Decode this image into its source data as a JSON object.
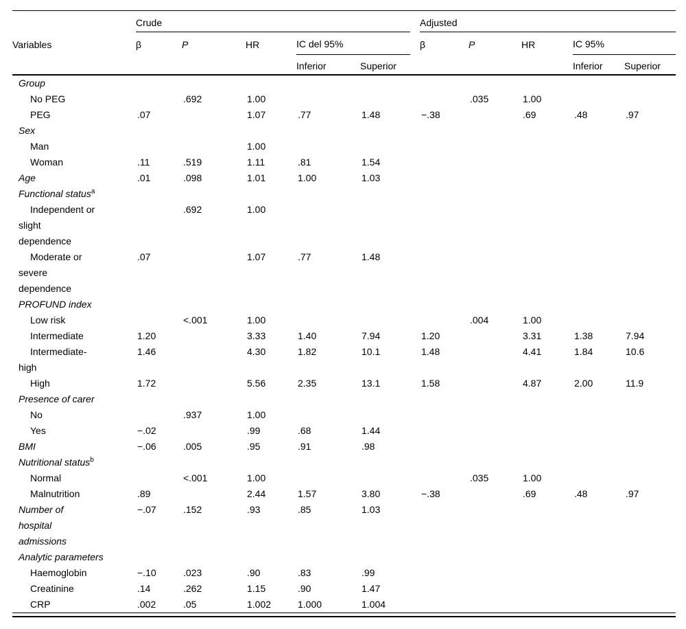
{
  "colors": {
    "background": "#ffffff",
    "text": "#000000",
    "rule": "#000000"
  },
  "table": {
    "header": {
      "variables": "Variables",
      "crude_group": "Crude",
      "adjusted_group": "Adjusted",
      "beta": "β",
      "p": "P",
      "hr": "HR",
      "ci_crude": "IC del 95%",
      "ci_adjusted": "IC 95%",
      "inferior": "Inferior",
      "superior": "Superior"
    },
    "rows": [
      {
        "label": "Group",
        "style": "section",
        "sup": "",
        "crude": [
          "",
          "",
          "",
          "",
          ""
        ],
        "adjusted": [
          "",
          "",
          "",
          "",
          ""
        ]
      },
      {
        "label": "No PEG",
        "style": "sub",
        "sup": "",
        "crude": [
          "",
          ".692",
          "1.00",
          "",
          ""
        ],
        "adjusted": [
          "",
          ".035",
          "1.00",
          "",
          ""
        ]
      },
      {
        "label": "PEG",
        "style": "sub",
        "sup": "",
        "crude": [
          ".07",
          "",
          "1.07",
          ".77",
          "1.48"
        ],
        "adjusted": [
          "−.38",
          "",
          ".69",
          ".48",
          ".97"
        ]
      },
      {
        "label": "Sex",
        "style": "section",
        "sup": "",
        "crude": [
          "",
          "",
          "",
          "",
          ""
        ],
        "adjusted": [
          "",
          "",
          "",
          "",
          ""
        ]
      },
      {
        "label": "Man",
        "style": "sub",
        "sup": "",
        "crude": [
          "",
          "",
          "1.00",
          "",
          ""
        ],
        "adjusted": [
          "",
          "",
          "",
          "",
          ""
        ]
      },
      {
        "label": "Woman",
        "style": "sub",
        "sup": "",
        "crude": [
          ".11",
          ".519",
          "1.11",
          ".81",
          "1.54"
        ],
        "adjusted": [
          "",
          "",
          "",
          "",
          ""
        ]
      },
      {
        "label": "Age",
        "style": "section",
        "sup": "",
        "crude": [
          ".01",
          ".098",
          "1.01",
          "1.00",
          "1.03"
        ],
        "adjusted": [
          "",
          "",
          "",
          "",
          ""
        ]
      },
      {
        "label": "Functional status",
        "style": "section",
        "sup": "a",
        "crude": [
          "",
          "",
          "",
          "",
          ""
        ],
        "adjusted": [
          "",
          "",
          "",
          "",
          ""
        ]
      },
      {
        "label": "Independent or\nslight\ndependence",
        "style": "sub",
        "sup": "",
        "crude": [
          "",
          ".692",
          "1.00",
          "",
          ""
        ],
        "adjusted": [
          "",
          "",
          "",
          "",
          ""
        ]
      },
      {
        "label": "Moderate or\nsevere\ndependence",
        "style": "sub",
        "sup": "",
        "crude": [
          ".07",
          "",
          "1.07",
          ".77",
          "1.48"
        ],
        "adjusted": [
          "",
          "",
          "",
          "",
          ""
        ]
      },
      {
        "label": "PROFUND index",
        "style": "section",
        "sup": "",
        "crude": [
          "",
          "",
          "",
          "",
          ""
        ],
        "adjusted": [
          "",
          "",
          "",
          "",
          ""
        ]
      },
      {
        "label": "Low risk",
        "style": "sub",
        "sup": "",
        "crude": [
          "",
          "<.001",
          "1.00",
          "",
          ""
        ],
        "adjusted": [
          "",
          ".004",
          "1.00",
          "",
          ""
        ]
      },
      {
        "label": "Intermediate",
        "style": "sub",
        "sup": "",
        "crude": [
          "1.20",
          "",
          "3.33",
          "1.40",
          "7.94"
        ],
        "adjusted": [
          "1.20",
          "",
          "3.31",
          "1.38",
          "7.94"
        ]
      },
      {
        "label": "Intermediate-\nhigh",
        "style": "sub",
        "sup": "",
        "crude": [
          "1.46",
          "",
          "4.30",
          "1.82",
          "10.1"
        ],
        "adjusted": [
          "1.48",
          "",
          "4.41",
          "1.84",
          "10.6"
        ]
      },
      {
        "label": "High",
        "style": "sub",
        "sup": "",
        "crude": [
          "1.72",
          "",
          "5.56",
          "2.35",
          "13.1"
        ],
        "adjusted": [
          "1.58",
          "",
          "4.87",
          "2.00",
          "11.9"
        ]
      },
      {
        "label": "Presence of carer",
        "style": "section",
        "sup": "",
        "crude": [
          "",
          "",
          "",
          "",
          ""
        ],
        "adjusted": [
          "",
          "",
          "",
          "",
          ""
        ]
      },
      {
        "label": "No",
        "style": "sub",
        "sup": "",
        "crude": [
          "",
          ".937",
          "1.00",
          "",
          ""
        ],
        "adjusted": [
          "",
          "",
          "",
          "",
          ""
        ]
      },
      {
        "label": "Yes",
        "style": "sub",
        "sup": "",
        "crude": [
          "−.02",
          "",
          ".99",
          ".68",
          "1.44"
        ],
        "adjusted": [
          "",
          "",
          "",
          "",
          ""
        ]
      },
      {
        "label": "BMI",
        "style": "section",
        "sup": "",
        "crude": [
          "−.06",
          ".005",
          ".95",
          ".91",
          ".98"
        ],
        "adjusted": [
          "",
          "",
          "",
          "",
          ""
        ]
      },
      {
        "label": "Nutritional status",
        "style": "section",
        "sup": "b",
        "crude": [
          "",
          "",
          "",
          "",
          ""
        ],
        "adjusted": [
          "",
          "",
          "",
          "",
          ""
        ]
      },
      {
        "label": "Normal",
        "style": "sub",
        "sup": "",
        "crude": [
          "",
          "<.001",
          "1.00",
          "",
          ""
        ],
        "adjusted": [
          "",
          ".035",
          "1.00",
          "",
          ""
        ]
      },
      {
        "label": "Malnutrition",
        "style": "sub",
        "sup": "",
        "crude": [
          ".89",
          "",
          "2.44",
          "1.57",
          "3.80"
        ],
        "adjusted": [
          "−.38",
          "",
          ".69",
          ".48",
          ".97"
        ]
      },
      {
        "label": "Number of\nhospital\nadmissions",
        "style": "section",
        "sup": "",
        "crude": [
          "−.07",
          ".152",
          ".93",
          ".85",
          "1.03"
        ],
        "adjusted": [
          "",
          "",
          "",
          "",
          ""
        ]
      },
      {
        "label": "Analytic parameters",
        "style": "section",
        "sup": "",
        "crude": [
          "",
          "",
          "",
          "",
          ""
        ],
        "adjusted": [
          "",
          "",
          "",
          "",
          ""
        ]
      },
      {
        "label": "Haemoglobin",
        "style": "sub",
        "sup": "",
        "crude": [
          "−.10",
          ".023",
          ".90",
          ".83",
          ".99"
        ],
        "adjusted": [
          "",
          "",
          "",
          "",
          ""
        ]
      },
      {
        "label": "Creatinine",
        "style": "sub",
        "sup": "",
        "crude": [
          ".14",
          ".262",
          "1.15",
          ".90",
          "1.47"
        ],
        "adjusted": [
          "",
          "",
          "",
          "",
          ""
        ]
      },
      {
        "label": "CRP",
        "style": "sub",
        "sup": "",
        "crude": [
          ".002",
          ".05",
          "1.002",
          "1.000",
          "1.004"
        ],
        "adjusted": [
          "",
          "",
          "",
          "",
          ""
        ]
      }
    ]
  }
}
